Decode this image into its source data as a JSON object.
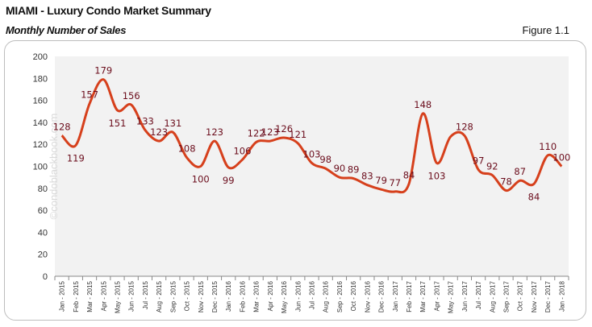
{
  "header": {
    "title": "MIAMI - Luxury Condo Market Summary",
    "subtitle": "Monthly Number of Sales",
    "figure": "Figure 1.1"
  },
  "watermark": "©condoblackbook.com",
  "chart_data": {
    "type": "line",
    "title": "",
    "xlabel": "",
    "ylabel": "",
    "ylim": [
      0,
      200
    ],
    "yticks": [
      0,
      20,
      40,
      60,
      80,
      100,
      120,
      140,
      160,
      180,
      200
    ],
    "grid": false,
    "line_color": "#d6401c",
    "label_color": "#6b0d1c",
    "plot_background": "#f2f2f2",
    "categories": [
      "Jan - 2015",
      "Feb - 2015",
      "Mar - 2015",
      "Apr - 2015",
      "May - 2015",
      "Jun - 2015",
      "Jul - 2015",
      "Aug - 2015",
      "Sep - 2015",
      "Oct - 2015",
      "Nov - 2015",
      "Dec - 2015",
      "Jan - 2016",
      "Feb - 2016",
      "Mar - 2016",
      "Apr - 2016",
      "May - 2016",
      "Jun - 2016",
      "Jul - 2016",
      "Aug - 2016",
      "Sep - 2016",
      "Oct - 2016",
      "Nov - 2016",
      "Dec - 2016",
      "Jan - 2017",
      "Feb - 2017",
      "Mar - 2017",
      "Apr - 2017",
      "May - 2017",
      "Jun - 2017",
      "Jul - 2017",
      "Aug - 2017",
      "Sep - 2017",
      "Oct - 2017",
      "Nov - 2017",
      "Dec - 2017",
      "Jan - 2018"
    ],
    "values": [
      128,
      119,
      157,
      179,
      151,
      156,
      133,
      123,
      131,
      108,
      100,
      123,
      99,
      106,
      122,
      123,
      126,
      121,
      103,
      98,
      90,
      89,
      83,
      79,
      77,
      84,
      148,
      103,
      127,
      128,
      97,
      92,
      78,
      87,
      84,
      110,
      100
    ],
    "data_labels": [
      "128",
      "119",
      "157",
      "179",
      "151",
      "156",
      "133",
      "123",
      "131",
      "108",
      "100",
      "123",
      "99",
      "106",
      "122",
      "123",
      "126",
      "121",
      "103",
      "98",
      "90",
      "89",
      "83",
      "79",
      "77",
      "84",
      "148",
      "103",
      "",
      "128",
      "97",
      "92",
      "78",
      "87",
      "84",
      "110",
      "100"
    ]
  }
}
